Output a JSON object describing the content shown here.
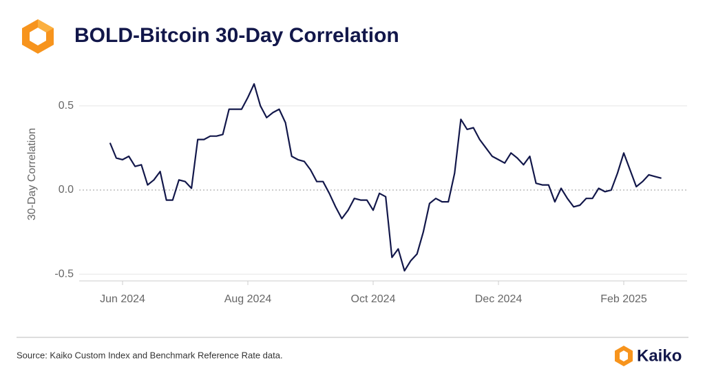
{
  "chart_data": {
    "type": "line",
    "title": "BOLD-Bitcoin 30-Day Correlation",
    "y_label": "30-Day Correlation",
    "source": "Source: Kaiko Custom Index and Benchmark Reference Rate data.",
    "brand": "Kaiko",
    "color": "#12174a",
    "categories": [
      null,
      null,
      "Jun 2024",
      null,
      null,
      null,
      null,
      null,
      null,
      null,
      null,
      null,
      null,
      null,
      null,
      null,
      null,
      null,
      null,
      null,
      null,
      null,
      "Aug 2024",
      null,
      null,
      null,
      null,
      null,
      null,
      null,
      null,
      null,
      null,
      null,
      null,
      null,
      null,
      null,
      null,
      null,
      null,
      null,
      "Oct 2024",
      null,
      null,
      null,
      null,
      null,
      null,
      null,
      null,
      null,
      null,
      null,
      null,
      null,
      null,
      null,
      null,
      null,
      null,
      null,
      "Dec 2024",
      null,
      null,
      null,
      null,
      null,
      null,
      null,
      null,
      null,
      null,
      null,
      null,
      null,
      null,
      null,
      null,
      null,
      null,
      null,
      "Feb 2025",
      null,
      null,
      null,
      null,
      null,
      null
    ],
    "values": [
      0.28,
      0.19,
      0.18,
      0.2,
      0.14,
      0.15,
      0.03,
      0.06,
      0.11,
      -0.06,
      -0.06,
      0.06,
      0.05,
      0.01,
      0.3,
      0.3,
      0.32,
      0.32,
      0.33,
      0.48,
      0.48,
      0.48,
      0.55,
      0.63,
      0.5,
      0.43,
      0.46,
      0.48,
      0.4,
      0.2,
      0.18,
      0.17,
      0.12,
      0.05,
      0.05,
      -0.02,
      -0.1,
      -0.17,
      -0.12,
      -0.05,
      -0.06,
      -0.06,
      -0.12,
      -0.02,
      -0.04,
      -0.4,
      -0.35,
      -0.48,
      -0.42,
      -0.38,
      -0.25,
      -0.08,
      -0.05,
      -0.07,
      -0.07,
      0.1,
      0.42,
      0.36,
      0.37,
      0.3,
      0.25,
      0.2,
      0.18,
      0.16,
      0.22,
      0.19,
      0.15,
      0.2,
      0.04,
      0.03,
      0.03,
      -0.07,
      0.01,
      -0.05,
      -0.1,
      -0.09,
      -0.05,
      -0.05,
      0.01,
      -0.01,
      0.0,
      0.1,
      0.22,
      0.12,
      0.02,
      0.05,
      0.09,
      0.08,
      0.07
    ],
    "ylim": [
      -0.54,
      0.74
    ],
    "yticks": [
      -0.5,
      {
        "value": 0,
        "label": "0.0"
      },
      0.5
    ],
    "grid": true
  }
}
